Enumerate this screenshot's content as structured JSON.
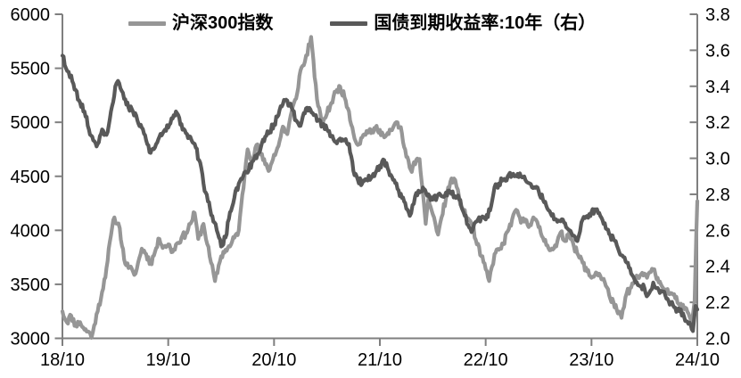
{
  "chart_data": {
    "type": "line",
    "title": "",
    "grid": false,
    "legend_position": "top-center",
    "legend": [
      {
        "label": "沪深300指数",
        "color": "#969696",
        "axis": "left"
      },
      {
        "label": "国债到期收益率:10年（右）",
        "color": "#595959",
        "axis": "right"
      }
    ],
    "x_axis": {
      "tick_labels": [
        "18/10",
        "19/10",
        "20/10",
        "21/10",
        "22/10",
        "23/10",
        "24/10"
      ],
      "months_span": 72
    },
    "y_axis_left": {
      "min": 3000,
      "max": 6000,
      "step": 500,
      "tick_labels": [
        "3000",
        "3500",
        "4000",
        "4500",
        "5000",
        "5500",
        "6000"
      ]
    },
    "y_axis_right": {
      "min": 2.0,
      "max": 3.8,
      "step": 0.2,
      "tick_labels": [
        "2.0",
        "2.2",
        "2.4",
        "2.6",
        "2.8",
        "3.0",
        "3.2",
        "3.4",
        "3.6",
        "3.8"
      ]
    },
    "series": [
      {
        "name": "沪深300指数",
        "axis": "left",
        "color": "#969696",
        "points": [
          [
            0,
            3250
          ],
          [
            0.5,
            3150
          ],
          [
            1,
            3210
          ],
          [
            1.5,
            3120
          ],
          [
            2,
            3150
          ],
          [
            2.5,
            3080
          ],
          [
            3,
            3060
          ],
          [
            3.3,
            3005
          ],
          [
            3.6,
            3120
          ],
          [
            4,
            3250
          ],
          [
            4.5,
            3430
          ],
          [
            5,
            3650
          ],
          [
            5.5,
            3950
          ],
          [
            5.9,
            4120
          ],
          [
            6.5,
            4020
          ],
          [
            7,
            3730
          ],
          [
            7.5,
            3650
          ],
          [
            8,
            3620
          ],
          [
            8.3,
            3600
          ],
          [
            9,
            3830
          ],
          [
            9.5,
            3780
          ],
          [
            10,
            3690
          ],
          [
            10.5,
            3800
          ],
          [
            11,
            3920
          ],
          [
            11.5,
            3850
          ],
          [
            12,
            3870
          ],
          [
            12.5,
            3800
          ],
          [
            13,
            3880
          ],
          [
            13.5,
            3930
          ],
          [
            14,
            3970
          ],
          [
            14.5,
            4060
          ],
          [
            15,
            4160
          ],
          [
            15.4,
            3920
          ],
          [
            16,
            4060
          ],
          [
            16.7,
            3760
          ],
          [
            17.3,
            3530
          ],
          [
            18,
            3760
          ],
          [
            18.5,
            3820
          ],
          [
            19,
            3850
          ],
          [
            19.5,
            3930
          ],
          [
            20,
            4000
          ],
          [
            20.8,
            4620
          ],
          [
            21,
            4750
          ],
          [
            21.5,
            4660
          ],
          [
            22,
            4790
          ],
          [
            22.5,
            4700
          ],
          [
            23,
            4610
          ],
          [
            23.5,
            4560
          ],
          [
            24,
            4700
          ],
          [
            24.5,
            4780
          ],
          [
            25,
            4960
          ],
          [
            25.5,
            4890
          ],
          [
            26,
            5100
          ],
          [
            26.5,
            5220
          ],
          [
            27,
            5480
          ],
          [
            27.5,
            5560
          ],
          [
            28.2,
            5790
          ],
          [
            28.6,
            5420
          ],
          [
            29,
            5150
          ],
          [
            29.4,
            5000
          ],
          [
            30,
            5080
          ],
          [
            30.5,
            5180
          ],
          [
            31,
            5280
          ],
          [
            31.5,
            5330
          ],
          [
            32,
            5230
          ],
          [
            32.5,
            5100
          ],
          [
            33,
            4900
          ],
          [
            33.5,
            4790
          ],
          [
            34,
            4860
          ],
          [
            34.5,
            4920
          ],
          [
            35,
            4900
          ],
          [
            35.5,
            4950
          ],
          [
            36,
            4930
          ],
          [
            36.5,
            4860
          ],
          [
            37,
            4890
          ],
          [
            37.5,
            4950
          ],
          [
            38,
            5000
          ],
          [
            38.5,
            4900
          ],
          [
            39,
            4680
          ],
          [
            39.5,
            4560
          ],
          [
            40,
            4610
          ],
          [
            40.5,
            4660
          ],
          [
            41,
            4250
          ],
          [
            41.2,
            4060
          ],
          [
            41.5,
            4290
          ],
          [
            42,
            4150
          ],
          [
            42.6,
            3960
          ],
          [
            43,
            4120
          ],
          [
            43.5,
            4300
          ],
          [
            44,
            4450
          ],
          [
            44.4,
            4480
          ],
          [
            45,
            4300
          ],
          [
            45.5,
            4170
          ],
          [
            46,
            4110
          ],
          [
            46.5,
            4050
          ],
          [
            47,
            3870
          ],
          [
            47.5,
            3760
          ],
          [
            48,
            3640
          ],
          [
            48.4,
            3530
          ],
          [
            49,
            3780
          ],
          [
            49.5,
            3820
          ],
          [
            50,
            3870
          ],
          [
            50.5,
            3990
          ],
          [
            51,
            4100
          ],
          [
            51.6,
            4180
          ],
          [
            52,
            4070
          ],
          [
            52.5,
            4100
          ],
          [
            53,
            4050
          ],
          [
            53.4,
            4120
          ],
          [
            54,
            4030
          ],
          [
            54.5,
            3930
          ],
          [
            55,
            3860
          ],
          [
            55.5,
            3830
          ],
          [
            56,
            3850
          ],
          [
            56.5,
            3980
          ],
          [
            57,
            3900
          ],
          [
            57.5,
            3990
          ],
          [
            58,
            3850
          ],
          [
            58.5,
            3770
          ],
          [
            59,
            3700
          ],
          [
            59.5,
            3620
          ],
          [
            60,
            3560
          ],
          [
            60.5,
            3610
          ],
          [
            61,
            3580
          ],
          [
            61.5,
            3520
          ],
          [
            62,
            3400
          ],
          [
            62.5,
            3330
          ],
          [
            63,
            3230
          ],
          [
            63.4,
            3190
          ],
          [
            64,
            3420
          ],
          [
            64.5,
            3470
          ],
          [
            65,
            3540
          ],
          [
            65.5,
            3580
          ],
          [
            66,
            3600
          ],
          [
            66.3,
            3560
          ],
          [
            67,
            3640
          ],
          [
            67.5,
            3560
          ],
          [
            68,
            3480
          ],
          [
            68.5,
            3440
          ],
          [
            69,
            3420
          ],
          [
            69.5,
            3370
          ],
          [
            70,
            3310
          ],
          [
            70.5,
            3270
          ],
          [
            71,
            3230
          ],
          [
            71.4,
            3160
          ],
          [
            71.7,
            3350
          ],
          [
            71.88,
            3950
          ],
          [
            72,
            4270
          ]
        ]
      },
      {
        "name": "国债到期收益率:10年（右）",
        "axis": "right",
        "color": "#595959",
        "points": [
          [
            0,
            3.57
          ],
          [
            0.4,
            3.5
          ],
          [
            1,
            3.46
          ],
          [
            1.5,
            3.38
          ],
          [
            2,
            3.31
          ],
          [
            2.5,
            3.26
          ],
          [
            3,
            3.16
          ],
          [
            3.5,
            3.1
          ],
          [
            4,
            3.08
          ],
          [
            4.5,
            3.16
          ],
          [
            5,
            3.13
          ],
          [
            5.5,
            3.26
          ],
          [
            6,
            3.4
          ],
          [
            6.3,
            3.43
          ],
          [
            7,
            3.33
          ],
          [
            7.5,
            3.28
          ],
          [
            8,
            3.26
          ],
          [
            8.5,
            3.21
          ],
          [
            9,
            3.17
          ],
          [
            9.5,
            3.1
          ],
          [
            10,
            3.03
          ],
          [
            10.5,
            3.06
          ],
          [
            11,
            3.12
          ],
          [
            11.5,
            3.15
          ],
          [
            12,
            3.17
          ],
          [
            12.5,
            3.22
          ],
          [
            13,
            3.25
          ],
          [
            13.5,
            3.19
          ],
          [
            14,
            3.14
          ],
          [
            14.5,
            3.12
          ],
          [
            15,
            3.08
          ],
          [
            15.5,
            2.99
          ],
          [
            16,
            2.86
          ],
          [
            16.5,
            2.76
          ],
          [
            17,
            2.68
          ],
          [
            17.5,
            2.6
          ],
          [
            18,
            2.51
          ],
          [
            18.5,
            2.56
          ],
          [
            19,
            2.7
          ],
          [
            19.5,
            2.78
          ],
          [
            20,
            2.86
          ],
          [
            20.5,
            2.9
          ],
          [
            21,
            2.92
          ],
          [
            21.5,
            2.98
          ],
          [
            22,
            3.0
          ],
          [
            22.5,
            3.06
          ],
          [
            23,
            3.12
          ],
          [
            23.5,
            3.15
          ],
          [
            24,
            3.19
          ],
          [
            24.5,
            3.24
          ],
          [
            25,
            3.3
          ],
          [
            25.5,
            3.32
          ],
          [
            26,
            3.28
          ],
          [
            26.5,
            3.21
          ],
          [
            27,
            3.18
          ],
          [
            27.5,
            3.25
          ],
          [
            28,
            3.28
          ],
          [
            28.5,
            3.24
          ],
          [
            29,
            3.21
          ],
          [
            29.5,
            3.18
          ],
          [
            30,
            3.16
          ],
          [
            30.5,
            3.12
          ],
          [
            31,
            3.09
          ],
          [
            31.5,
            3.11
          ],
          [
            32,
            3.1
          ],
          [
            32.5,
            3.08
          ],
          [
            33,
            2.93
          ],
          [
            33.5,
            2.88
          ],
          [
            34,
            2.86
          ],
          [
            34.5,
            2.88
          ],
          [
            35,
            2.89
          ],
          [
            35.5,
            2.92
          ],
          [
            36,
            2.96
          ],
          [
            36.5,
            2.99
          ],
          [
            37,
            2.93
          ],
          [
            37.5,
            2.88
          ],
          [
            38,
            2.83
          ],
          [
            38.5,
            2.78
          ],
          [
            39,
            2.72
          ],
          [
            39.4,
            2.68
          ],
          [
            40,
            2.79
          ],
          [
            40.5,
            2.81
          ],
          [
            41,
            2.83
          ],
          [
            41.5,
            2.8
          ],
          [
            42,
            2.77
          ],
          [
            42.5,
            2.79
          ],
          [
            43,
            2.79
          ],
          [
            43.5,
            2.81
          ],
          [
            44,
            2.81
          ],
          [
            44.5,
            2.79
          ],
          [
            45,
            2.77
          ],
          [
            45.5,
            2.7
          ],
          [
            46,
            2.63
          ],
          [
            46.4,
            2.59
          ],
          [
            47,
            2.65
          ],
          [
            47.5,
            2.67
          ],
          [
            48,
            2.66
          ],
          [
            48.5,
            2.71
          ],
          [
            49,
            2.84
          ],
          [
            49.5,
            2.86
          ],
          [
            50,
            2.88
          ],
          [
            50.5,
            2.9
          ],
          [
            51,
            2.91
          ],
          [
            51.5,
            2.9
          ],
          [
            52,
            2.9
          ],
          [
            52.5,
            2.88
          ],
          [
            53,
            2.86
          ],
          [
            53.5,
            2.84
          ],
          [
            54,
            2.82
          ],
          [
            54.5,
            2.77
          ],
          [
            55,
            2.72
          ],
          [
            55.5,
            2.68
          ],
          [
            56,
            2.66
          ],
          [
            56.5,
            2.65
          ],
          [
            57,
            2.64
          ],
          [
            57.5,
            2.6
          ],
          [
            58,
            2.57
          ],
          [
            58.4,
            2.54
          ],
          [
            59,
            2.66
          ],
          [
            59.5,
            2.68
          ],
          [
            60,
            2.7
          ],
          [
            60.5,
            2.71
          ],
          [
            61,
            2.68
          ],
          [
            61.5,
            2.64
          ],
          [
            62,
            2.58
          ],
          [
            62.5,
            2.55
          ],
          [
            63,
            2.5
          ],
          [
            63.5,
            2.46
          ],
          [
            64,
            2.42
          ],
          [
            64.5,
            2.36
          ],
          [
            65,
            2.31
          ],
          [
            65.5,
            2.29
          ],
          [
            66,
            2.28
          ],
          [
            66.4,
            2.24
          ],
          [
            67,
            2.31
          ],
          [
            67.5,
            2.28
          ],
          [
            68,
            2.26
          ],
          [
            68.5,
            2.22
          ],
          [
            69,
            2.19
          ],
          [
            69.5,
            2.17
          ],
          [
            70,
            2.15
          ],
          [
            70.5,
            2.12
          ],
          [
            71,
            2.08
          ],
          [
            71.5,
            2.04
          ],
          [
            71.8,
            2.18
          ],
          [
            72,
            2.16
          ]
        ]
      }
    ],
    "style": {
      "axis_color": "#7f7f7f",
      "text_color": "#000000",
      "background": "#ffffff",
      "line_width": 4.2,
      "jitter": {
        "seed": 11,
        "points_per_month": 7,
        "amp_left": 34,
        "amp_right": 0.02,
        "calm_after_t": 71.3
      }
    }
  }
}
